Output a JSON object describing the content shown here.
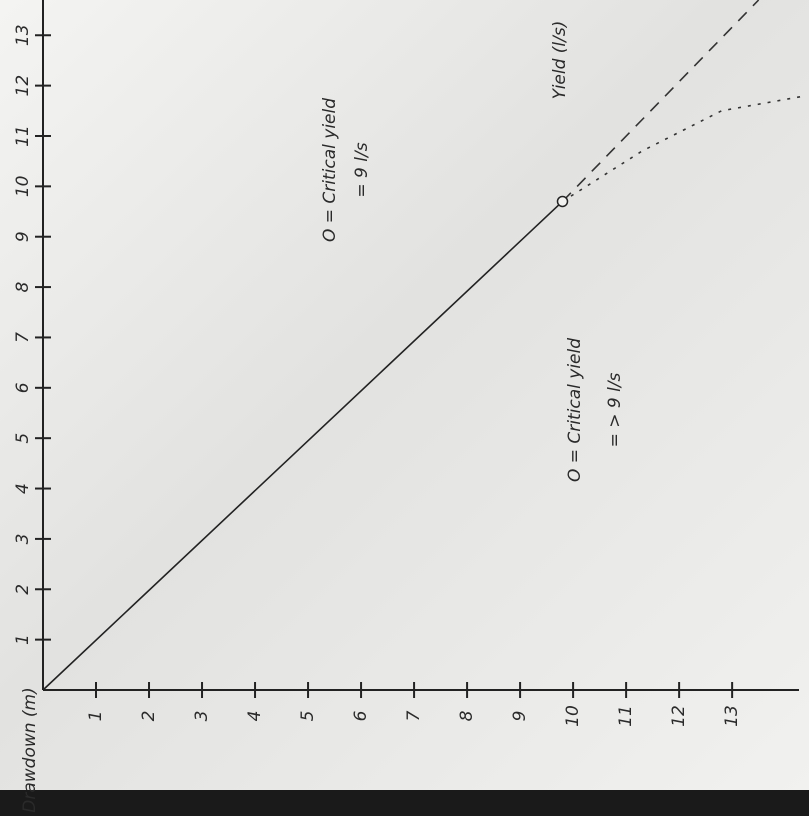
{
  "chart_data": {
    "type": "line",
    "x_label": "Drawdown (m)",
    "y_label": "Yield (l/s)",
    "xlim": [
      0,
      14.45
    ],
    "ylim": [
      0,
      13.7
    ],
    "xticks": [
      1,
      2,
      3,
      4,
      5,
      6,
      7,
      8,
      9,
      10,
      11,
      12,
      13
    ],
    "yticks": [
      1,
      2,
      3,
      4,
      5,
      6,
      7,
      8,
      9,
      10,
      11,
      12,
      13
    ],
    "series": [
      {
        "color": "#222222",
        "dash": "solid",
        "x": [
          0,
          9.8
        ],
        "values": [
          0,
          9.7
        ]
      },
      {
        "color": "#333333",
        "dash": "dashed",
        "x": [
          9.8,
          13.5
        ],
        "values": [
          9.7,
          13.7
        ]
      },
      {
        "color": "#333333",
        "dash": "dotted",
        "x": [
          9.8,
          11.3,
          12.8,
          14.4
        ],
        "values": [
          9.7,
          10.7,
          11.5,
          11.8
        ]
      }
    ],
    "critical_point": {
      "x": 9.8,
      "y": 9.7
    },
    "annotations": [
      "O = Critical yield",
      "= 9 l/s",
      "O = Critical yield",
      "= > 9 l/s"
    ]
  }
}
